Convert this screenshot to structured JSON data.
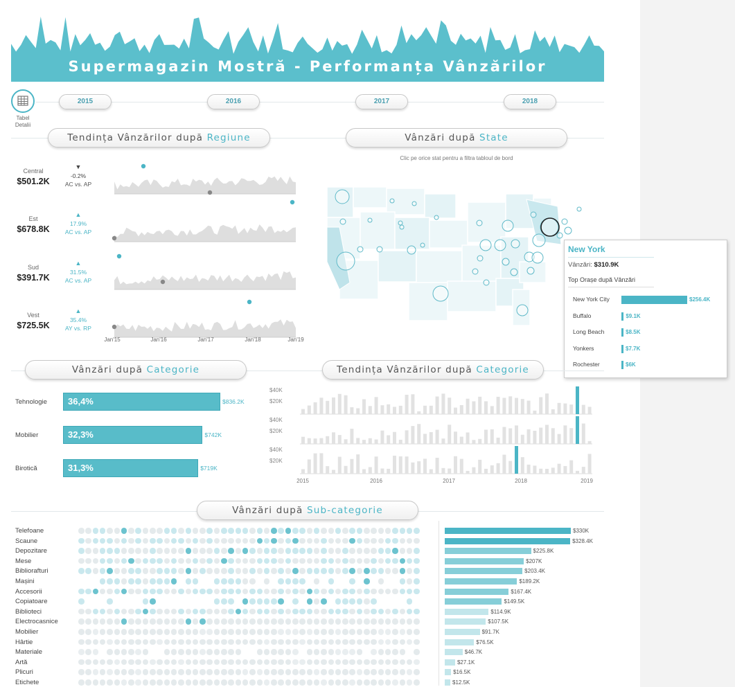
{
  "header": {
    "title": "Supermagazin Mostră - Performanța Vânzărilor",
    "color": "#5bbfcc"
  },
  "details": {
    "label_line1": "Tabel",
    "label_line2": "Detalii",
    "icon": "table-icon"
  },
  "years": [
    "2015",
    "2016",
    "2017",
    "2018"
  ],
  "region_section": {
    "title_prefix": "Tendința Vânzărilor după ",
    "title_accent": "Regiune",
    "regions": [
      {
        "name": "Central",
        "value": "$501.2K",
        "change": "-0.2%",
        "arrow": "▼",
        "compare": "AC vs. AP",
        "trend": "down"
      },
      {
        "name": "Est",
        "value": "$678.8K",
        "change": "17.9%",
        "arrow": "▲",
        "compare": "AC vs. AP",
        "trend": "up"
      },
      {
        "name": "Sud",
        "value": "$391.7K",
        "change": "31.5%",
        "arrow": "▲",
        "compare": "AC vs. AP",
        "trend": "up"
      },
      {
        "name": "Vest",
        "value": "$725.5K",
        "change": "35.4%",
        "arrow": "▲",
        "compare": "AY vs. RP",
        "trend": "up"
      }
    ],
    "x_ticks": [
      "Jan'15",
      "Jan'16",
      "Jan'17",
      "Jan'18",
      "Jan'19"
    ]
  },
  "state_section": {
    "title_prefix": "Vânzări după ",
    "title_accent": "State",
    "hint": "Clic pe orice stat pentru a filtra tabloul de bord"
  },
  "tooltip": {
    "state": "New York",
    "sales_label": "Vânzări:",
    "sales_value": "$310.9K",
    "cities_title": "Top Orașe după Vânzări",
    "cities": [
      {
        "name": "New York City",
        "value": "$256.4K",
        "amount": 256.4
      },
      {
        "name": "Buffalo",
        "value": "$9.1K",
        "amount": 9.1
      },
      {
        "name": "Long Beach",
        "value": "$8.5K",
        "amount": 8.5
      },
      {
        "name": "Yonkers",
        "value": "$7.7K",
        "amount": 7.7
      },
      {
        "name": "Rochester",
        "value": "$6K",
        "amount": 6
      }
    ]
  },
  "category_section": {
    "title_prefix": "Vânzări după ",
    "title_accent": "Categorie",
    "items": [
      {
        "name": "Tehnologie",
        "pct": "36,4%",
        "value": "$836.2K",
        "share": 0.364
      },
      {
        "name": "Mobilier",
        "pct": "32,3%",
        "value": "$742K",
        "share": 0.323
      },
      {
        "name": "Birotică",
        "pct": "31,3%",
        "value": "$719K",
        "share": 0.313
      }
    ]
  },
  "category_trend": {
    "title_prefix": "Tendința Vânzărilor după ",
    "title_accent": "Categorie",
    "y_ticks": [
      "$40K",
      "$20K"
    ],
    "x_ticks": [
      "2015",
      "2016",
      "2017",
      "2018",
      "2019"
    ]
  },
  "subcategory_section": {
    "title_prefix": "Vânzări după ",
    "title_accent": "Sub-categorie",
    "items": [
      {
        "name": "Telefoane",
        "value": "$330K",
        "amount": 330
      },
      {
        "name": "Scaune",
        "value": "$328.4K",
        "amount": 328.4
      },
      {
        "name": "Depozitare",
        "value": "$225.8K",
        "amount": 225.8
      },
      {
        "name": "Mese",
        "value": "$207K",
        "amount": 207
      },
      {
        "name": "Bibliorafturi",
        "value": "$203.4K",
        "amount": 203.4
      },
      {
        "name": "Mașini",
        "value": "$189.2K",
        "amount": 189.2
      },
      {
        "name": "Accesorii",
        "value": "$167.4K",
        "amount": 167.4
      },
      {
        "name": "Copiatoare",
        "value": "$149.5K",
        "amount": 149.5
      },
      {
        "name": "Biblioteci",
        "value": "$114.9K",
        "amount": 114.9
      },
      {
        "name": "Electrocasnice",
        "value": "$107.5K",
        "amount": 107.5
      },
      {
        "name": "Mobilier",
        "value": "$91.7K",
        "amount": 91.7
      },
      {
        "name": "Hârtie",
        "value": "$76.5K",
        "amount": 76.5
      },
      {
        "name": "Materiale",
        "value": "$46.7K",
        "amount": 46.7
      },
      {
        "name": "Artă",
        "value": "$27.1K",
        "amount": 27.1
      },
      {
        "name": "Plicuri",
        "value": "$16.5K",
        "amount": 16.5
      },
      {
        "name": "Etichete",
        "value": "$12.5K",
        "amount": 12.5
      }
    ]
  },
  "colors": {
    "accent": "#4bb5c6",
    "bar": "#58bcc9",
    "grey": "#dcdcdc"
  }
}
